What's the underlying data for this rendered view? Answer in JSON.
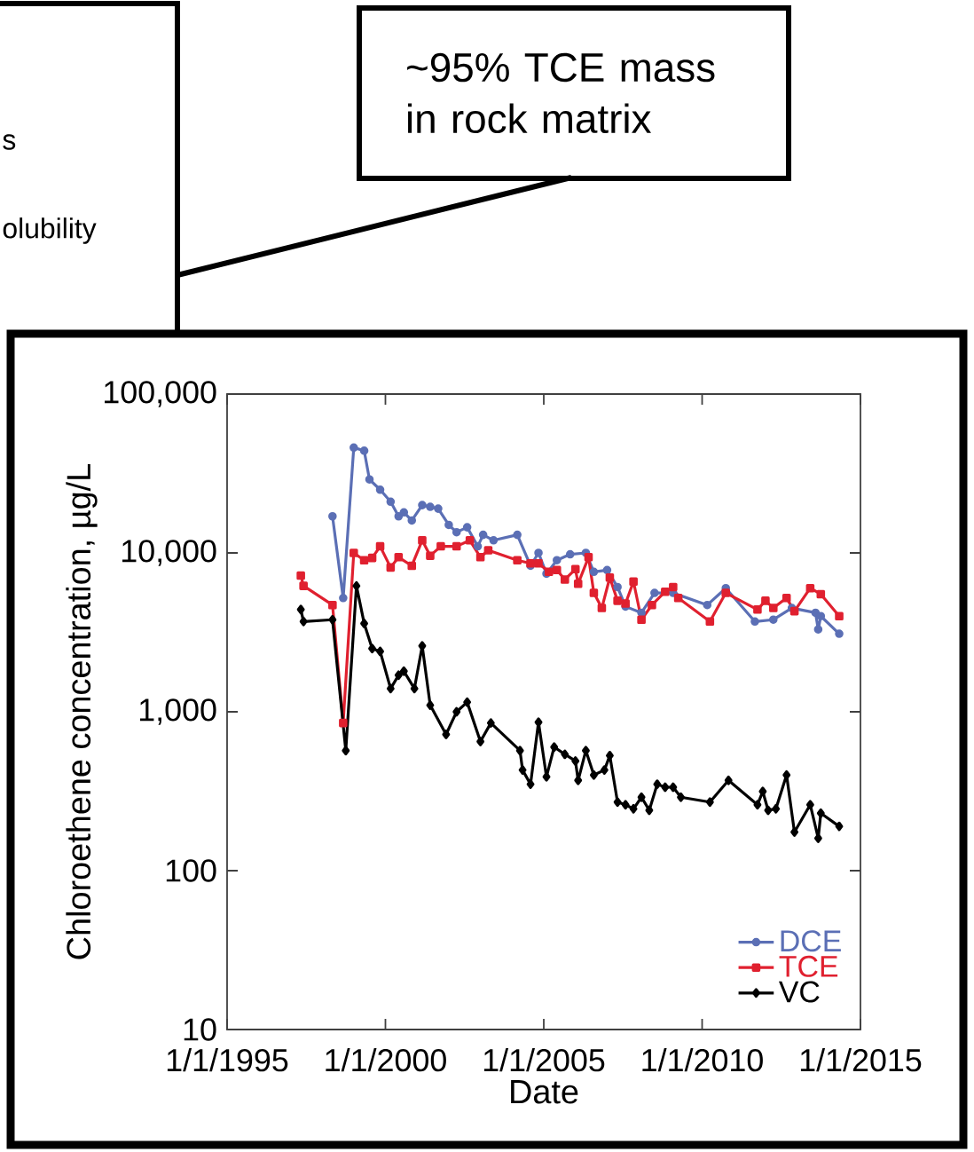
{
  "chart_data": {
    "type": "line",
    "xlabel": "Date",
    "ylabel": "Chloroethene concentration, µg/L",
    "annotations": [
      "~95% TCE mass in rock matrix",
      "s",
      "olubility"
    ],
    "xlim": [
      "1995-01-01",
      "2015-01-01"
    ],
    "xticks": [
      {
        "value": "1995-01-01",
        "label": "1/1/1995"
      },
      {
        "value": "2000-01-01",
        "label": "1/1/2000"
      },
      {
        "value": "2005-01-01",
        "label": "1/1/2005"
      },
      {
        "value": "2010-01-01",
        "label": "1/1/2010"
      },
      {
        "value": "2015-01-01",
        "label": "1/1/2015"
      }
    ],
    "ylim": [
      10,
      100000
    ],
    "yticks": [
      10,
      100,
      {
        "value": 1000,
        "label": "1,000"
      },
      {
        "value": 10000,
        "label": "10,000"
      },
      {
        "value": 100000,
        "label": "100,000"
      }
    ],
    "log": "y",
    "grid": false,
    "legend": "bottom right",
    "series": [
      {
        "name": "DCE",
        "color": "#5b6fb5",
        "marker": "circle",
        "x": [
          "1998-05",
          "1998-09",
          "1999-01",
          "1999-05",
          "1999-07",
          "1999-11",
          "2000-03",
          "2000-06",
          "2000-08",
          "2000-11",
          "2001-03",
          "2001-06",
          "2001-09",
          "2002-01",
          "2002-04",
          "2002-08",
          "2002-12",
          "2003-02",
          "2003-06",
          "2004-03",
          "2004-08",
          "2004-11",
          "2005-02",
          "2005-06",
          "2005-11",
          "2006-05",
          "2006-08",
          "2007-01",
          "2007-05",
          "2007-08",
          "2008-02",
          "2008-07",
          "2009-02",
          "2010-03",
          "2010-10",
          "2011-09",
          "2012-04",
          "2012-11",
          "2013-08",
          "2013-09",
          "2013-10",
          "2014-05"
        ],
        "values": [
          17000,
          5200,
          46000,
          44000,
          29000,
          25000,
          21000,
          17000,
          18000,
          16000,
          20000,
          19500,
          19000,
          15000,
          13500,
          14500,
          11000,
          13000,
          12000,
          13000,
          8300,
          10000,
          7400,
          9000,
          9800,
          10000,
          7600,
          7800,
          6100,
          4600,
          4200,
          5600,
          5600,
          4700,
          6000,
          3700,
          3800,
          4500,
          4200,
          3300,
          4000,
          3100
        ]
      },
      {
        "name": "TCE",
        "color": "#e0202f",
        "marker": "square",
        "x": [
          "1997-05",
          "1997-06",
          "1998-05",
          "1998-09",
          "1999-01",
          "1999-05",
          "1999-08",
          "1999-11",
          "2000-03",
          "2000-06",
          "2000-11",
          "2001-03",
          "2001-06",
          "2001-10",
          "2002-04",
          "2002-09",
          "2003-01",
          "2003-04",
          "2004-03",
          "2004-08",
          "2004-11",
          "2005-03",
          "2005-06",
          "2005-09",
          "2006-01",
          "2006-02",
          "2006-06",
          "2006-08",
          "2006-11",
          "2007-02",
          "2007-05",
          "2007-08",
          "2007-11",
          "2008-02",
          "2008-06",
          "2008-11",
          "2009-02",
          "2009-04",
          "2010-04",
          "2010-10",
          "2011-10",
          "2012-01",
          "2012-04",
          "2012-09",
          "2012-12",
          "2013-06",
          "2013-10",
          "2014-05"
        ],
        "values": [
          7200,
          6200,
          4700,
          850,
          10000,
          9000,
          9300,
          11000,
          8100,
          9400,
          8300,
          12000,
          9600,
          11000,
          11000,
          12000,
          9400,
          10400,
          9000,
          8600,
          8600,
          7600,
          7800,
          6800,
          7900,
          6400,
          9400,
          5600,
          4500,
          7000,
          5000,
          4800,
          6600,
          3800,
          4700,
          5700,
          6100,
          5200,
          3700,
          5600,
          4400,
          5000,
          4500,
          5200,
          4300,
          6000,
          5500,
          4000
        ]
      },
      {
        "name": "VC",
        "color": "#000000",
        "marker": "diamond",
        "x": [
          "1997-05",
          "1997-06",
          "1998-05",
          "1998-10",
          "1999-02",
          "1999-05",
          "1999-08",
          "1999-11",
          "2000-03",
          "2000-06",
          "2000-08",
          "2000-12",
          "2001-03",
          "2001-06",
          "2001-12",
          "2002-04",
          "2002-08",
          "2003-01",
          "2003-05",
          "2004-04",
          "2004-05",
          "2004-08",
          "2004-11",
          "2005-02",
          "2005-05",
          "2005-09",
          "2006-01",
          "2006-02",
          "2006-05",
          "2006-08",
          "2006-12",
          "2007-02",
          "2007-05",
          "2007-08",
          "2007-11",
          "2008-02",
          "2008-05",
          "2008-08",
          "2008-11",
          "2009-02",
          "2009-05",
          "2010-04",
          "2010-11",
          "2011-10",
          "2011-12",
          "2012-02",
          "2012-05",
          "2012-09",
          "2012-12",
          "2013-06",
          "2013-09",
          "2013-10",
          "2014-05"
        ],
        "values": [
          4400,
          3700,
          3800,
          570,
          6200,
          3600,
          2500,
          2400,
          1400,
          1700,
          1800,
          1400,
          2600,
          1100,
          720,
          1000,
          1150,
          650,
          850,
          570,
          430,
          350,
          860,
          390,
          600,
          540,
          490,
          370,
          570,
          400,
          430,
          530,
          270,
          260,
          245,
          290,
          240,
          350,
          335,
          335,
          290,
          270,
          370,
          260,
          315,
          240,
          245,
          400,
          175,
          260,
          160,
          230,
          190
        ]
      }
    ]
  }
}
